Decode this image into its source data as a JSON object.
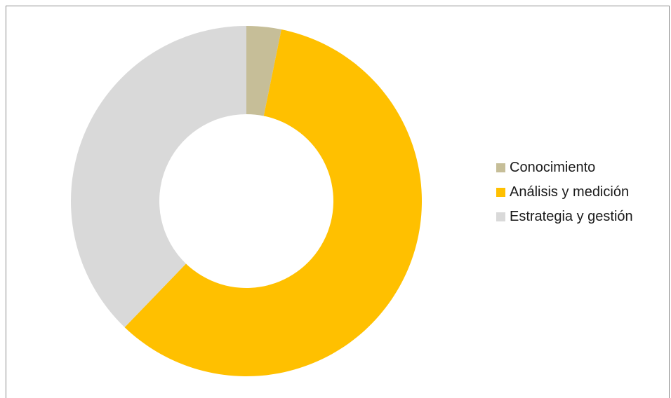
{
  "chart_data": {
    "type": "pie",
    "variant": "donut",
    "series": [
      {
        "name": "Conocimiento",
        "value": 3.2,
        "color": "#C6BE98"
      },
      {
        "name": "Análisis y medición",
        "value": 59.0,
        "color": "#FFC000"
      },
      {
        "name": "Estrategia y gestión",
        "value": 37.8,
        "color": "#D9D9D9"
      }
    ],
    "title": "",
    "legend_position": "right"
  },
  "legend": {
    "items": [
      {
        "label": "Conocimiento",
        "color": "#C6BE98"
      },
      {
        "label": "Análisis y medición",
        "color": "#FFC000"
      },
      {
        "label": "Estrategia y gestión",
        "color": "#D9D9D9"
      }
    ]
  }
}
